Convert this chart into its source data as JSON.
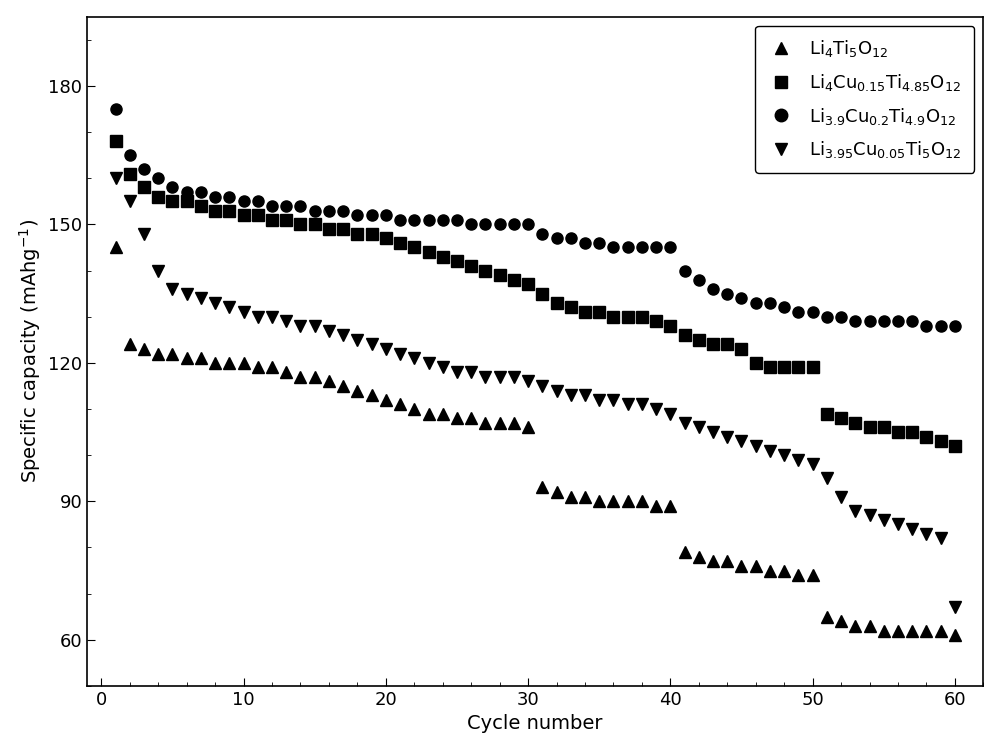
{
  "title": "",
  "xlabel": "Cycle number",
  "ylabel": "Specific capacity (mAhg$^{-1}$)",
  "xlim": [
    -1,
    62
  ],
  "ylim": [
    50,
    195
  ],
  "yticks": [
    60,
    90,
    120,
    150,
    180
  ],
  "xticks": [
    0,
    10,
    20,
    30,
    40,
    50,
    60
  ],
  "series": {
    "Li4Ti5O12": {
      "marker": "^",
      "label": "Li$_4$Ti$_5$O$_{12}$",
      "x": [
        1,
        2,
        3,
        4,
        5,
        6,
        7,
        8,
        9,
        10,
        11,
        12,
        13,
        14,
        15,
        16,
        17,
        18,
        19,
        20,
        21,
        22,
        23,
        24,
        25,
        26,
        27,
        28,
        29,
        30,
        31,
        32,
        33,
        34,
        35,
        36,
        37,
        38,
        39,
        40,
        41,
        42,
        43,
        44,
        45,
        46,
        47,
        48,
        49,
        50,
        51,
        52,
        53,
        54,
        55,
        56,
        57,
        58,
        59,
        60
      ],
      "y": [
        145,
        124,
        123,
        122,
        122,
        121,
        121,
        120,
        120,
        120,
        119,
        119,
        118,
        117,
        117,
        116,
        115,
        114,
        113,
        112,
        111,
        110,
        109,
        109,
        108,
        108,
        107,
        107,
        107,
        106,
        93,
        92,
        91,
        91,
        90,
        90,
        90,
        90,
        89,
        89,
        79,
        78,
        77,
        77,
        76,
        76,
        75,
        75,
        74,
        74,
        65,
        64,
        63,
        63,
        62,
        62,
        62,
        62,
        62,
        61
      ]
    },
    "Li4Cu015Ti485O12": {
      "marker": "s",
      "label": "Li$_4$Cu$_{0.15}$Ti$_{4.85}$O$_{12}$",
      "x": [
        1,
        2,
        3,
        4,
        5,
        6,
        7,
        8,
        9,
        10,
        11,
        12,
        13,
        14,
        15,
        16,
        17,
        18,
        19,
        20,
        21,
        22,
        23,
        24,
        25,
        26,
        27,
        28,
        29,
        30,
        31,
        32,
        33,
        34,
        35,
        36,
        37,
        38,
        39,
        40,
        41,
        42,
        43,
        44,
        45,
        46,
        47,
        48,
        49,
        50,
        51,
        52,
        53,
        54,
        55,
        56,
        57,
        58,
        59,
        60
      ],
      "y": [
        168,
        161,
        158,
        156,
        155,
        155,
        154,
        153,
        153,
        152,
        152,
        151,
        151,
        150,
        150,
        149,
        149,
        148,
        148,
        147,
        146,
        145,
        144,
        143,
        142,
        141,
        140,
        139,
        138,
        137,
        135,
        133,
        132,
        131,
        131,
        130,
        130,
        130,
        129,
        128,
        126,
        125,
        124,
        124,
        123,
        120,
        119,
        119,
        119,
        119,
        109,
        108,
        107,
        106,
        106,
        105,
        105,
        104,
        103,
        102
      ]
    },
    "Li39Cu02Ti49O12": {
      "marker": "o",
      "label": "Li$_{3.9}$Cu$_{0.2}$Ti$_{4.9}$O$_{12}$",
      "x": [
        1,
        2,
        3,
        4,
        5,
        6,
        7,
        8,
        9,
        10,
        11,
        12,
        13,
        14,
        15,
        16,
        17,
        18,
        19,
        20,
        21,
        22,
        23,
        24,
        25,
        26,
        27,
        28,
        29,
        30,
        31,
        32,
        33,
        34,
        35,
        36,
        37,
        38,
        39,
        40,
        41,
        42,
        43,
        44,
        45,
        46,
        47,
        48,
        49,
        50,
        51,
        52,
        53,
        54,
        55,
        56,
        57,
        58,
        59,
        60
      ],
      "y": [
        175,
        165,
        162,
        160,
        158,
        157,
        157,
        156,
        156,
        155,
        155,
        154,
        154,
        154,
        153,
        153,
        153,
        152,
        152,
        152,
        151,
        151,
        151,
        151,
        151,
        150,
        150,
        150,
        150,
        150,
        148,
        147,
        147,
        146,
        146,
        145,
        145,
        145,
        145,
        145,
        140,
        138,
        136,
        135,
        134,
        133,
        133,
        132,
        131,
        131,
        130,
        130,
        129,
        129,
        129,
        129,
        129,
        128,
        128,
        128
      ]
    },
    "Li395Cu005Ti5O12": {
      "marker": "v",
      "label": "Li$_{3.95}$Cu$_{0.05}$Ti$_5$O$_{12}$",
      "x": [
        1,
        2,
        3,
        4,
        5,
        6,
        7,
        8,
        9,
        10,
        11,
        12,
        13,
        14,
        15,
        16,
        17,
        18,
        19,
        20,
        21,
        22,
        23,
        24,
        25,
        26,
        27,
        28,
        29,
        30,
        31,
        32,
        33,
        34,
        35,
        36,
        37,
        38,
        39,
        40,
        41,
        42,
        43,
        44,
        45,
        46,
        47,
        48,
        49,
        50,
        51,
        52,
        53,
        54,
        55,
        56,
        57,
        58,
        59,
        60
      ],
      "y": [
        160,
        155,
        148,
        140,
        136,
        135,
        134,
        133,
        132,
        131,
        130,
        130,
        129,
        128,
        128,
        127,
        126,
        125,
        124,
        123,
        122,
        121,
        120,
        119,
        118,
        118,
        117,
        117,
        117,
        116,
        115,
        114,
        113,
        113,
        112,
        112,
        111,
        111,
        110,
        109,
        107,
        106,
        105,
        104,
        103,
        102,
        101,
        100,
        99,
        98,
        95,
        91,
        88,
        87,
        86,
        85,
        84,
        83,
        82,
        67
      ]
    }
  },
  "markersize": 8,
  "color": "black",
  "background_color": "white",
  "legend_fontsize": 13,
  "axis_fontsize": 14,
  "tick_fontsize": 13
}
